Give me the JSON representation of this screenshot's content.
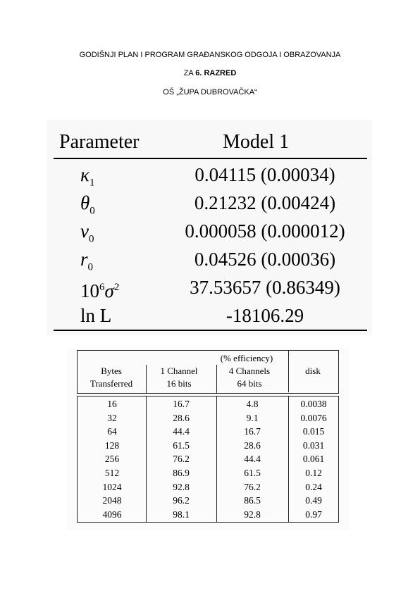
{
  "header": {
    "line1": "GODIŠNJI PLAN I PROGRAM GRAĐANSKOG ODGOJA I OBRAZOVANJA",
    "line2_prefix": "ZA ",
    "line2_bold": "6. RAZRED",
    "line3": "OŠ „ŽUPA DUBROVAČKA“"
  },
  "table1": {
    "col_param": "Parameter",
    "col_model": "Model 1",
    "rows": [
      {
        "sym": "κ",
        "sub": "1",
        "sup": "",
        "value": "0.04115 (0.00034)"
      },
      {
        "sym": "θ",
        "sub": "0",
        "sup": "",
        "value": "0.21232 (0.00424)"
      },
      {
        "sym": "v",
        "sub": "0",
        "sup": "",
        "value": "0.000058 (0.000012)"
      },
      {
        "sym": "r",
        "sub": "0",
        "sup": "",
        "value": "0.04526 (0.00036)"
      },
      {
        "sym": "10",
        "sub": "",
        "sup": "6",
        "sym2": "σ",
        "sup2": "2",
        "value": "37.53657 (0.86349)"
      },
      {
        "sym": "ln L",
        "sub": "",
        "sup": "",
        "value": "-18106.29"
      }
    ]
  },
  "table2": {
    "span_header": "(% efficiency)",
    "col1": [
      "Bytes",
      "Transferred"
    ],
    "col2": [
      "1 Channel",
      "16 bits"
    ],
    "col3": [
      "4 Channels",
      "64 bits"
    ],
    "col4": [
      "disk"
    ],
    "rows": [
      [
        "16",
        "16.7",
        "4.8",
        "0.0038"
      ],
      [
        "32",
        "28.6",
        "9.1",
        "0.0076"
      ],
      [
        "64",
        "44.4",
        "16.7",
        "0.015"
      ],
      [
        "128",
        "61.5",
        "28.6",
        "0.031"
      ],
      [
        "256",
        "76.2",
        "44.4",
        "0.061"
      ],
      [
        "512",
        "86.9",
        "61.5",
        "0.12"
      ],
      [
        "1024",
        "92.8",
        "76.2",
        "0.24"
      ],
      [
        "2048",
        "96.2",
        "86.5",
        "0.49"
      ],
      [
        "4096",
        "98.1",
        "92.8",
        "0.97"
      ]
    ]
  }
}
